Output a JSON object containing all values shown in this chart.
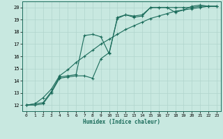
{
  "xlabel": "Humidex (Indice chaleur)",
  "ylabel": "",
  "bg_color": "#c8e8e0",
  "grid_color": "#b0d4cc",
  "line_color": "#1a6b5a",
  "xlim": [
    -0.5,
    23.5
  ],
  "ylim": [
    11.5,
    20.5
  ],
  "xticks": [
    0,
    1,
    2,
    3,
    4,
    5,
    6,
    7,
    8,
    9,
    10,
    11,
    12,
    13,
    14,
    15,
    16,
    17,
    18,
    19,
    20,
    21,
    22,
    23
  ],
  "yticks": [
    12,
    13,
    14,
    15,
    16,
    17,
    18,
    19,
    20
  ],
  "line1_x": [
    0,
    1,
    2,
    3,
    4,
    5,
    6,
    7,
    8,
    9,
    10,
    11,
    12,
    13,
    14,
    15,
    16,
    17,
    18,
    19,
    20,
    21,
    22,
    23
  ],
  "line1_y": [
    12.0,
    12.0,
    12.1,
    13.0,
    14.2,
    14.3,
    14.4,
    14.4,
    14.2,
    15.8,
    16.3,
    19.1,
    19.4,
    19.3,
    19.4,
    20.0,
    20.0,
    20.0,
    20.0,
    20.0,
    20.0,
    20.1,
    20.1,
    20.1
  ],
  "line2_x": [
    0,
    1,
    2,
    3,
    4,
    5,
    6,
    7,
    8,
    9,
    10,
    11,
    12,
    13,
    14,
    15,
    16,
    17,
    18,
    19,
    20,
    21,
    22,
    23
  ],
  "line2_y": [
    12.0,
    12.1,
    12.2,
    13.1,
    14.3,
    14.4,
    14.5,
    17.7,
    17.8,
    17.6,
    16.2,
    19.2,
    19.4,
    19.2,
    19.3,
    20.0,
    20.0,
    20.0,
    19.6,
    19.8,
    20.1,
    20.2,
    20.1,
    20.1
  ],
  "line3_x": [
    0,
    1,
    2,
    3,
    4,
    5,
    6,
    7,
    8,
    9,
    10,
    11,
    12,
    13,
    14,
    15,
    16,
    17,
    18,
    19,
    20,
    21,
    22,
    23
  ],
  "line3_y": [
    12.0,
    12.1,
    12.6,
    13.3,
    14.4,
    14.9,
    15.5,
    16.0,
    16.5,
    17.0,
    17.4,
    17.8,
    18.2,
    18.5,
    18.8,
    19.1,
    19.3,
    19.5,
    19.7,
    19.8,
    19.9,
    20.0,
    20.1,
    20.1
  ]
}
